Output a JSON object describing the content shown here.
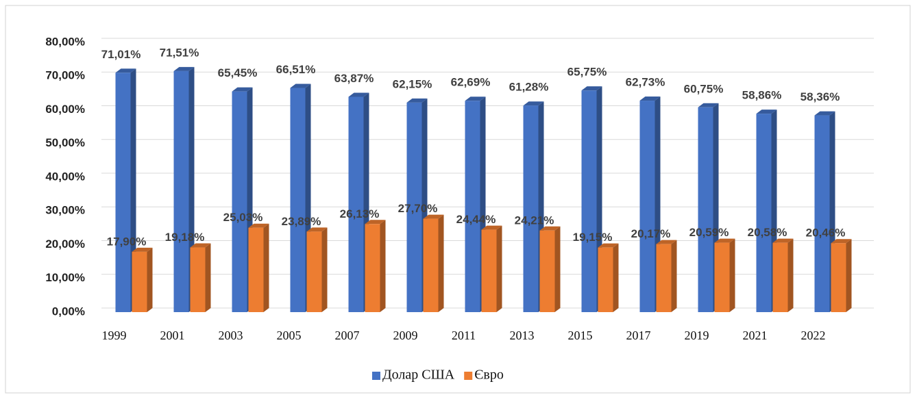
{
  "chart_data": {
    "type": "bar3d",
    "categories": [
      "1999",
      "2001",
      "2003",
      "2005",
      "2007",
      "2009",
      "2011",
      "2013",
      "2015",
      "2017",
      "2019",
      "2021",
      "2022"
    ],
    "series": [
      {
        "name": "Долар США",
        "color": "#4472c4",
        "values": [
          71.01,
          71.51,
          65.45,
          66.51,
          63.87,
          62.15,
          62.69,
          61.28,
          65.75,
          62.73,
          60.75,
          58.86,
          58.36
        ],
        "value_labels": [
          "71,01%",
          "71,51%",
          "65,45%",
          "66,51%",
          "63,87%",
          "62,15%",
          "62,69%",
          "61,28%",
          "65,75%",
          "62,73%",
          "60,75%",
          "58,86%",
          "58,36%"
        ]
      },
      {
        "name": "Євро",
        "color": "#ed7d31",
        "values": [
          17.9,
          19.18,
          25.03,
          23.89,
          26.13,
          27.7,
          24.44,
          24.21,
          19.15,
          20.17,
          20.59,
          20.58,
          20.46
        ],
        "value_labels": [
          "17,90%",
          "19,18%",
          "25,03%",
          "23,89%",
          "26,13%",
          "27,70%",
          "24,44%",
          "24,21%",
          "19,15%",
          "20,17%",
          "20,59%",
          "20,58%",
          "20,46%"
        ]
      }
    ],
    "ylim": [
      0,
      80
    ],
    "yticks": [
      {
        "value": 0,
        "label": "0,00%"
      },
      {
        "value": 10,
        "label": "10,00%"
      },
      {
        "value": 20,
        "label": "20,00%"
      },
      {
        "value": 30,
        "label": "30,00%"
      },
      {
        "value": 40,
        "label": "40,00%"
      },
      {
        "value": 50,
        "label": "50,00%"
      },
      {
        "value": 60,
        "label": "60,00%"
      },
      {
        "value": 70,
        "label": "70,00%"
      },
      {
        "value": 80,
        "label": "80,00%"
      }
    ],
    "grid": true,
    "legend": "bottom"
  }
}
